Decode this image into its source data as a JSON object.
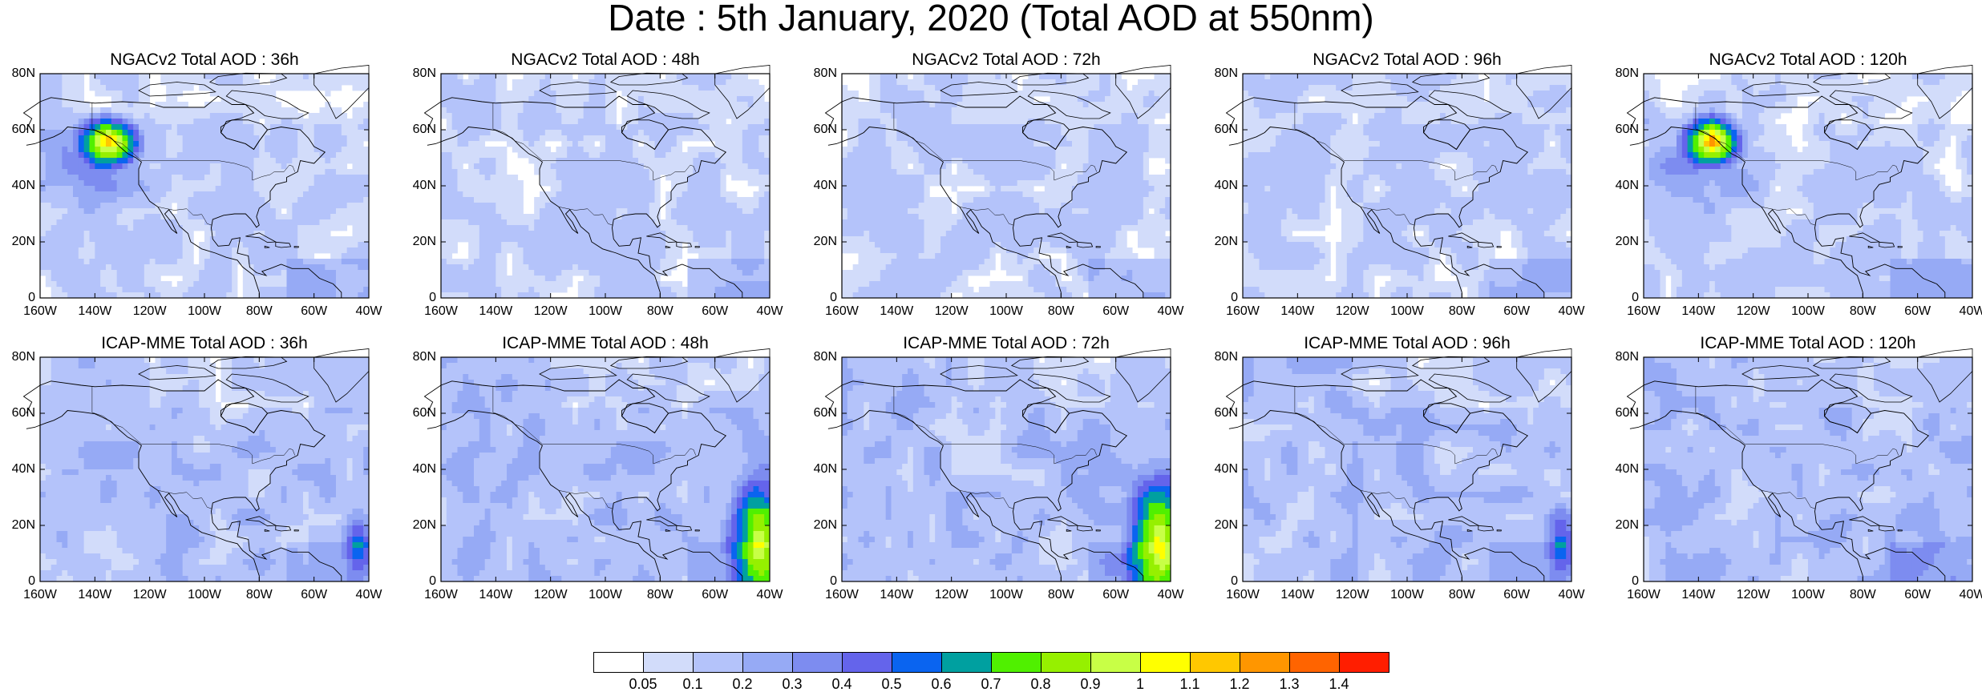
{
  "main_title": "Date : 5th January, 2020 (Total AOD at 550nm)",
  "lat_labels": [
    "80N",
    "60N",
    "40N",
    "20N",
    "0"
  ],
  "lon_labels": [
    "160W",
    "140W",
    "120W",
    "100W",
    "80W",
    "60W",
    "40W"
  ],
  "panels": [
    {
      "title": "NGACv2 Total AOD : 36h",
      "plume": "west-coast-high"
    },
    {
      "title": "NGACv2 Total AOD : 48h",
      "plume": "none"
    },
    {
      "title": "NGACv2 Total AOD : 72h",
      "plume": "none"
    },
    {
      "title": "NGACv2 Total AOD : 96h",
      "plume": "none"
    },
    {
      "title": "NGACv2 Total AOD : 120h",
      "plume": "west-coast-high"
    },
    {
      "title": "ICAP-MME Total AOD : 36h",
      "plume": "atlantic-moderate"
    },
    {
      "title": "ICAP-MME Total AOD : 48h",
      "plume": "atlantic-high"
    },
    {
      "title": "ICAP-MME Total AOD : 72h",
      "plume": "atlantic-high"
    },
    {
      "title": "ICAP-MME Total AOD : 96h",
      "plume": "atlantic-moderate"
    },
    {
      "title": "ICAP-MME Total AOD : 120h",
      "plume": "none"
    }
  ],
  "colorbar": {
    "labels": [
      "0.05",
      "0.1",
      "0.2",
      "0.3",
      "0.4",
      "0.5",
      "0.6",
      "0.7",
      "0.8",
      "0.9",
      "1",
      "1.1",
      "1.2",
      "1.3",
      "1.4"
    ],
    "colors": [
      "#ffffff",
      "#d2dcfa",
      "#b4c3fa",
      "#96aaf5",
      "#7d8cf0",
      "#6464eb",
      "#0a64f0",
      "#00a0a0",
      "#50f000",
      "#96f000",
      "#c8ff46",
      "#ffff00",
      "#ffc800",
      "#ff9600",
      "#ff6400",
      "#ff1e00"
    ]
  }
}
